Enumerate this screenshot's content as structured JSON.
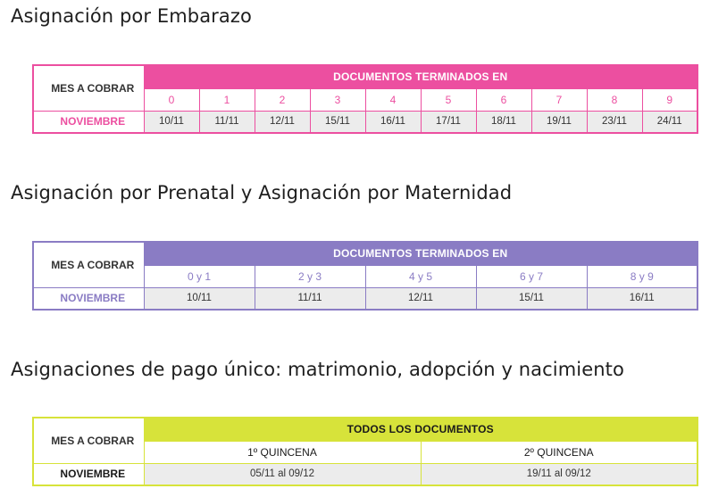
{
  "colors": {
    "pink": "#ec4fa0",
    "purple": "#8a7cc4",
    "lime": "#d7e33a",
    "date_cell_bg": "#ececec"
  },
  "sections": [
    {
      "heading": "Asignación por Embarazo",
      "mes_label": "MES A COBRAR",
      "banner": "DOCUMENTOS TERMINADOS EN",
      "columns": [
        "0",
        "1",
        "2",
        "3",
        "4",
        "5",
        "6",
        "7",
        "8",
        "9"
      ],
      "month": "NOVIEMBRE",
      "dates": [
        "10/11",
        "11/11",
        "12/11",
        "15/11",
        "16/11",
        "17/11",
        "18/11",
        "19/11",
        "23/11",
        "24/11"
      ]
    },
    {
      "heading": "Asignación por Prenatal y Asignación por Maternidad",
      "mes_label": "MES A COBRAR",
      "banner": "DOCUMENTOS TERMINADOS EN",
      "columns": [
        "0 y 1",
        "2 y 3",
        "4 y 5",
        "6 y 7",
        "8 y 9"
      ],
      "month": "NOVIEMBRE",
      "dates": [
        "10/11",
        "11/11",
        "12/11",
        "15/11",
        "16/11"
      ]
    },
    {
      "heading": "Asignaciones de pago único: matrimonio, adopción y nacimiento",
      "mes_label": "MES A COBRAR",
      "banner": "TODOS LOS DOCUMENTOS",
      "columns": [
        "1º QUINCENA",
        "2º QUINCENA"
      ],
      "month": "NOVIEMBRE",
      "dates": [
        "05/11 al 09/12",
        "19/11 al 09/12"
      ]
    }
  ]
}
